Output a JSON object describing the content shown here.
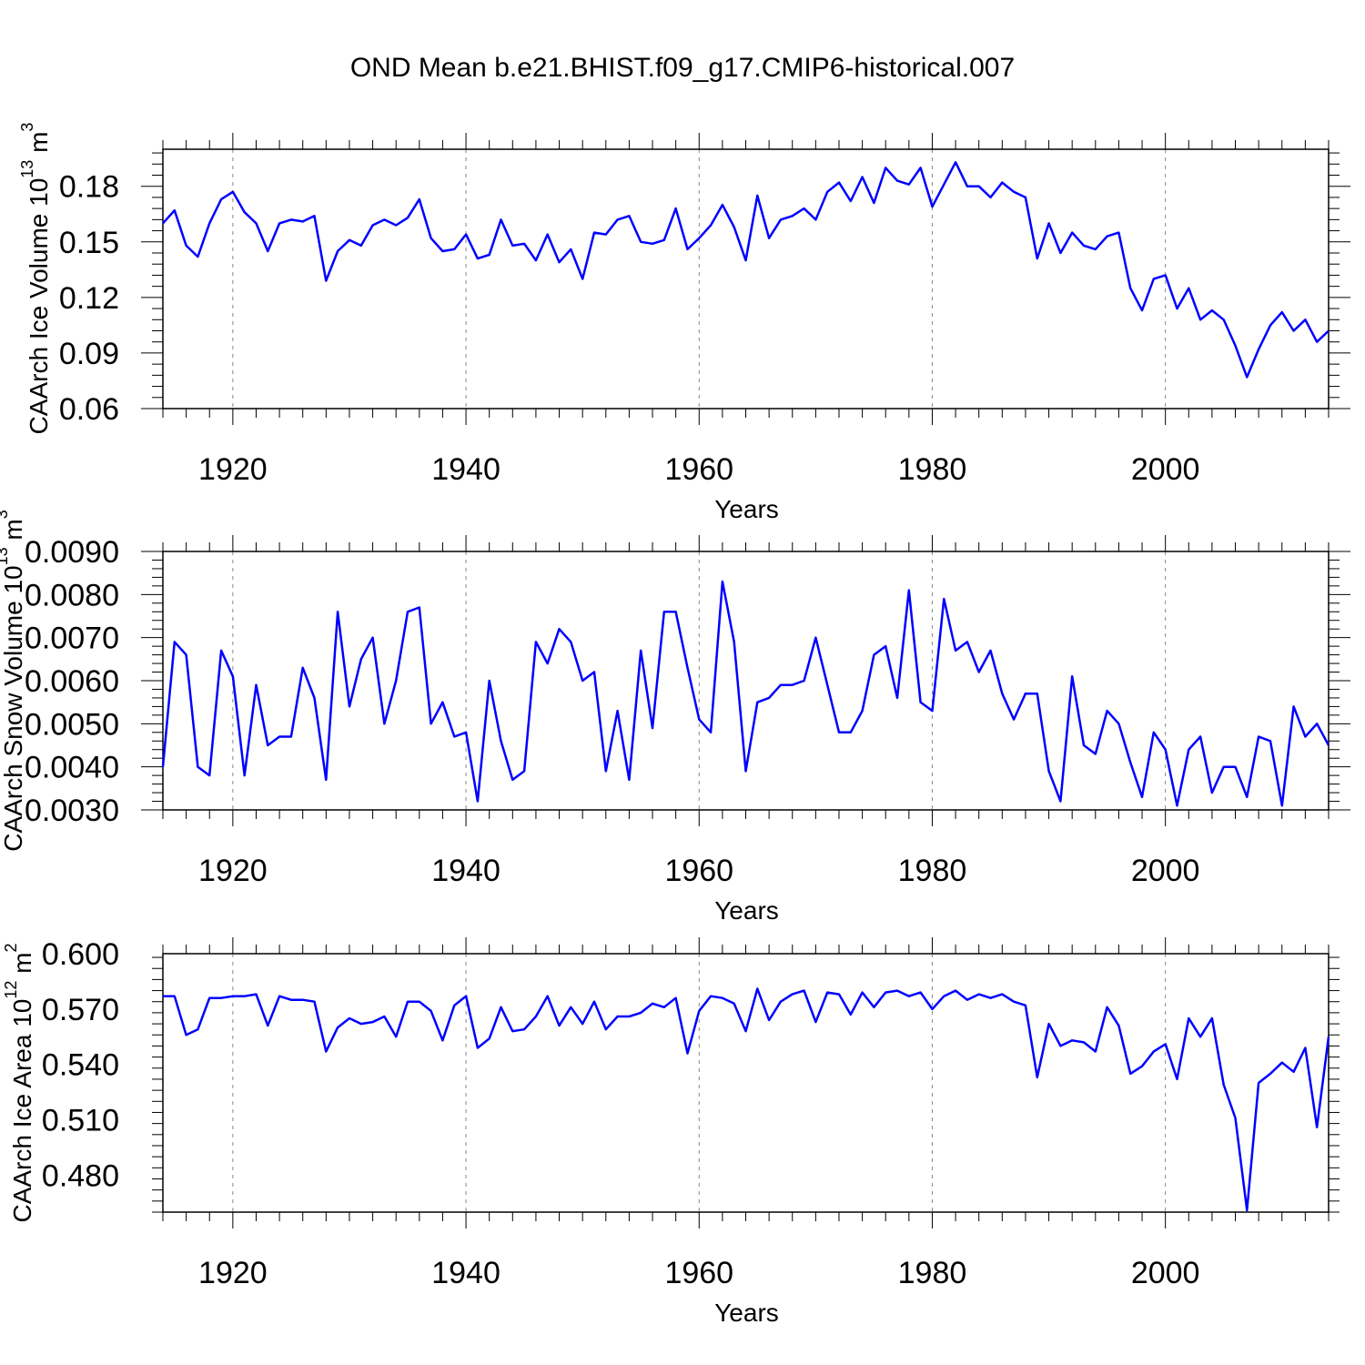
{
  "title": "OND Mean b.e21.BHIST.f09_g17.CMIP6-historical.007",
  "line_color": "#0000ff",
  "chart_data": [
    {
      "type": "line",
      "title": "OND Mean b.e21.BHIST.f09_g17.CMIP6-historical.007",
      "xlabel": "Years",
      "ylabel_base": "CAArch Ice Volume 10",
      "ylabel_exp": "13",
      "ylabel_unit": " m",
      "ylabel_unit_exp": "3",
      "xlim": [
        1914,
        2014
      ],
      "ylim": [
        0.06,
        0.2
      ],
      "xticks": [
        1920,
        1940,
        1960,
        1980,
        2000
      ],
      "yticks": [
        0.06,
        0.09,
        0.12,
        0.15,
        0.18
      ],
      "ytick_labels": [
        "0.06",
        "0.09",
        "0.12",
        "0.15",
        "0.18"
      ],
      "grid_x": true,
      "x_start": 1914,
      "series": [
        {
          "name": "CAArch Ice Volume",
          "values": [
            0.16,
            0.167,
            0.148,
            0.142,
            0.16,
            0.173,
            0.177,
            0.166,
            0.16,
            0.145,
            0.16,
            0.162,
            0.161,
            0.164,
            0.129,
            0.145,
            0.151,
            0.148,
            0.159,
            0.162,
            0.159,
            0.163,
            0.173,
            0.152,
            0.145,
            0.146,
            0.154,
            0.141,
            0.143,
            0.162,
            0.148,
            0.149,
            0.14,
            0.154,
            0.139,
            0.146,
            0.13,
            0.155,
            0.154,
            0.162,
            0.164,
            0.15,
            0.149,
            0.151,
            0.168,
            0.146,
            0.152,
            0.159,
            0.17,
            0.158,
            0.14,
            0.175,
            0.152,
            0.162,
            0.164,
            0.168,
            0.162,
            0.177,
            0.182,
            0.172,
            0.185,
            0.171,
            0.19,
            0.183,
            0.181,
            0.19,
            0.169,
            0.181,
            0.193,
            0.18,
            0.18,
            0.174,
            0.182,
            0.177,
            0.174,
            0.141,
            0.16,
            0.144,
            0.155,
            0.148,
            0.146,
            0.153,
            0.155,
            0.125,
            0.113,
            0.13,
            0.132,
            0.114,
            0.125,
            0.108,
            0.113,
            0.108,
            0.094,
            0.077,
            0.092,
            0.105,
            0.112,
            0.102,
            0.108,
            0.096,
            0.102
          ]
        }
      ]
    },
    {
      "type": "line",
      "xlabel": "Years",
      "ylabel_base": "CAArch Snow Volume 10",
      "ylabel_exp": "13",
      "ylabel_unit": " m",
      "ylabel_unit_exp": "3",
      "xlim": [
        1914,
        2014
      ],
      "ylim": [
        0.003,
        0.009
      ],
      "xticks": [
        1920,
        1940,
        1960,
        1980,
        2000
      ],
      "yticks": [
        0.003,
        0.004,
        0.005,
        0.006,
        0.007,
        0.008,
        0.009
      ],
      "ytick_labels": [
        "0.0030",
        "0.0040",
        "0.0050",
        "0.0060",
        "0.0070",
        "0.0080",
        "0.0090"
      ],
      "grid_x": true,
      "x_start": 1914,
      "series": [
        {
          "name": "CAArch Snow Volume",
          "values": [
            0.004,
            0.0069,
            0.0066,
            0.004,
            0.0038,
            0.0067,
            0.0061,
            0.0038,
            0.0059,
            0.0045,
            0.0047,
            0.0047,
            0.0063,
            0.0056,
            0.0037,
            0.0076,
            0.0054,
            0.0065,
            0.007,
            0.005,
            0.006,
            0.0076,
            0.0077,
            0.005,
            0.0055,
            0.0047,
            0.0048,
            0.0032,
            0.006,
            0.0046,
            0.0037,
            0.0039,
            0.0069,
            0.0064,
            0.0072,
            0.0069,
            0.006,
            0.0062,
            0.0039,
            0.0053,
            0.0037,
            0.0067,
            0.0049,
            0.0076,
            0.0076,
            0.0063,
            0.0051,
            0.0048,
            0.0083,
            0.0069,
            0.0039,
            0.0055,
            0.0056,
            0.0059,
            0.0059,
            0.006,
            0.007,
            0.0059,
            0.0048,
            0.0048,
            0.0053,
            0.0066,
            0.0068,
            0.0056,
            0.0081,
            0.0055,
            0.0053,
            0.0079,
            0.0067,
            0.0069,
            0.0062,
            0.0067,
            0.0057,
            0.0051,
            0.0057,
            0.0057,
            0.0039,
            0.0032,
            0.0061,
            0.0045,
            0.0043,
            0.0053,
            0.005,
            0.0041,
            0.0033,
            0.0048,
            0.0044,
            0.0031,
            0.0044,
            0.0047,
            0.0034,
            0.004,
            0.004,
            0.0033,
            0.0047,
            0.0046,
            0.0031,
            0.0054,
            0.0047,
            0.005,
            0.0045
          ]
        }
      ]
    },
    {
      "type": "line",
      "xlabel": "Years",
      "ylabel_base": "CAArch Ice Area 10",
      "ylabel_exp": "12",
      "ylabel_unit": " m",
      "ylabel_unit_exp": "2",
      "xlim": [
        1914,
        2014
      ],
      "ylim": [
        0.46,
        0.6
      ],
      "xticks": [
        1920,
        1940,
        1960,
        1980,
        2000
      ],
      "yticks": [
        0.48,
        0.51,
        0.54,
        0.57,
        0.6
      ],
      "ytick_labels": [
        "0.480",
        "0.510",
        "0.540",
        "0.570",
        "0.600"
      ],
      "grid_x": true,
      "x_start": 1914,
      "series": [
        {
          "name": "CAArch Ice Area",
          "values": [
            0.577,
            0.577,
            0.556,
            0.559,
            0.576,
            0.576,
            0.577,
            0.577,
            0.578,
            0.561,
            0.577,
            0.575,
            0.575,
            0.574,
            0.547,
            0.56,
            0.565,
            0.562,
            0.563,
            0.566,
            0.555,
            0.574,
            0.574,
            0.569,
            0.553,
            0.572,
            0.577,
            0.549,
            0.554,
            0.571,
            0.558,
            0.559,
            0.566,
            0.577,
            0.561,
            0.571,
            0.562,
            0.574,
            0.559,
            0.566,
            0.566,
            0.568,
            0.573,
            0.571,
            0.576,
            0.546,
            0.569,
            0.577,
            0.576,
            0.573,
            0.558,
            0.581,
            0.564,
            0.574,
            0.578,
            0.58,
            0.563,
            0.579,
            0.578,
            0.567,
            0.579,
            0.571,
            0.579,
            0.58,
            0.577,
            0.579,
            0.57,
            0.577,
            0.58,
            0.575,
            0.578,
            0.576,
            0.578,
            0.574,
            0.572,
            0.533,
            0.562,
            0.55,
            0.553,
            0.552,
            0.547,
            0.571,
            0.561,
            0.535,
            0.539,
            0.547,
            0.551,
            0.532,
            0.565,
            0.555,
            0.565,
            0.529,
            0.511,
            0.461,
            0.53,
            0.535,
            0.541,
            0.536,
            0.549,
            0.506,
            0.555
          ]
        }
      ]
    }
  ]
}
